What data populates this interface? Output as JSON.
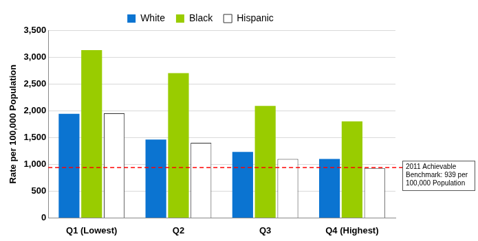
{
  "chart_data": {
    "type": "bar",
    "y_label": "Rate per 100,000 Population",
    "categories": [
      "Q1 (Lowest)",
      "Q2",
      "Q3",
      "Q4 (Highest)"
    ],
    "series": [
      {
        "name": "White",
        "color": "#0b74d1",
        "values": [
          1940,
          1460,
          1230,
          1100
        ]
      },
      {
        "name": "Black",
        "color": "#99cc00",
        "values": [
          3130,
          2700,
          2090,
          1800
        ]
      },
      {
        "name": "Hispanic",
        "color": "#ffffff",
        "values": [
          1950,
          1400,
          1100,
          930
        ]
      }
    ],
    "ylim": [
      0,
      3500
    ],
    "yticks": [
      0,
      500,
      {
        "value": 1000,
        "label": "1,000"
      },
      {
        "value": 1500,
        "label": "1,500"
      },
      {
        "value": 2000,
        "label": "2,000"
      },
      {
        "value": 2500,
        "label": "2,500"
      },
      {
        "value": 3000,
        "label": "3,000"
      },
      {
        "value": 3500,
        "label": "3,500"
      }
    ],
    "grid": true,
    "legend": "top",
    "annotations": [
      {
        "text": "2011 Achievable Benchmark: 939 per 100,000 Population",
        "value": 939,
        "color": "#ff0000",
        "line_style": "dashed"
      }
    ]
  }
}
